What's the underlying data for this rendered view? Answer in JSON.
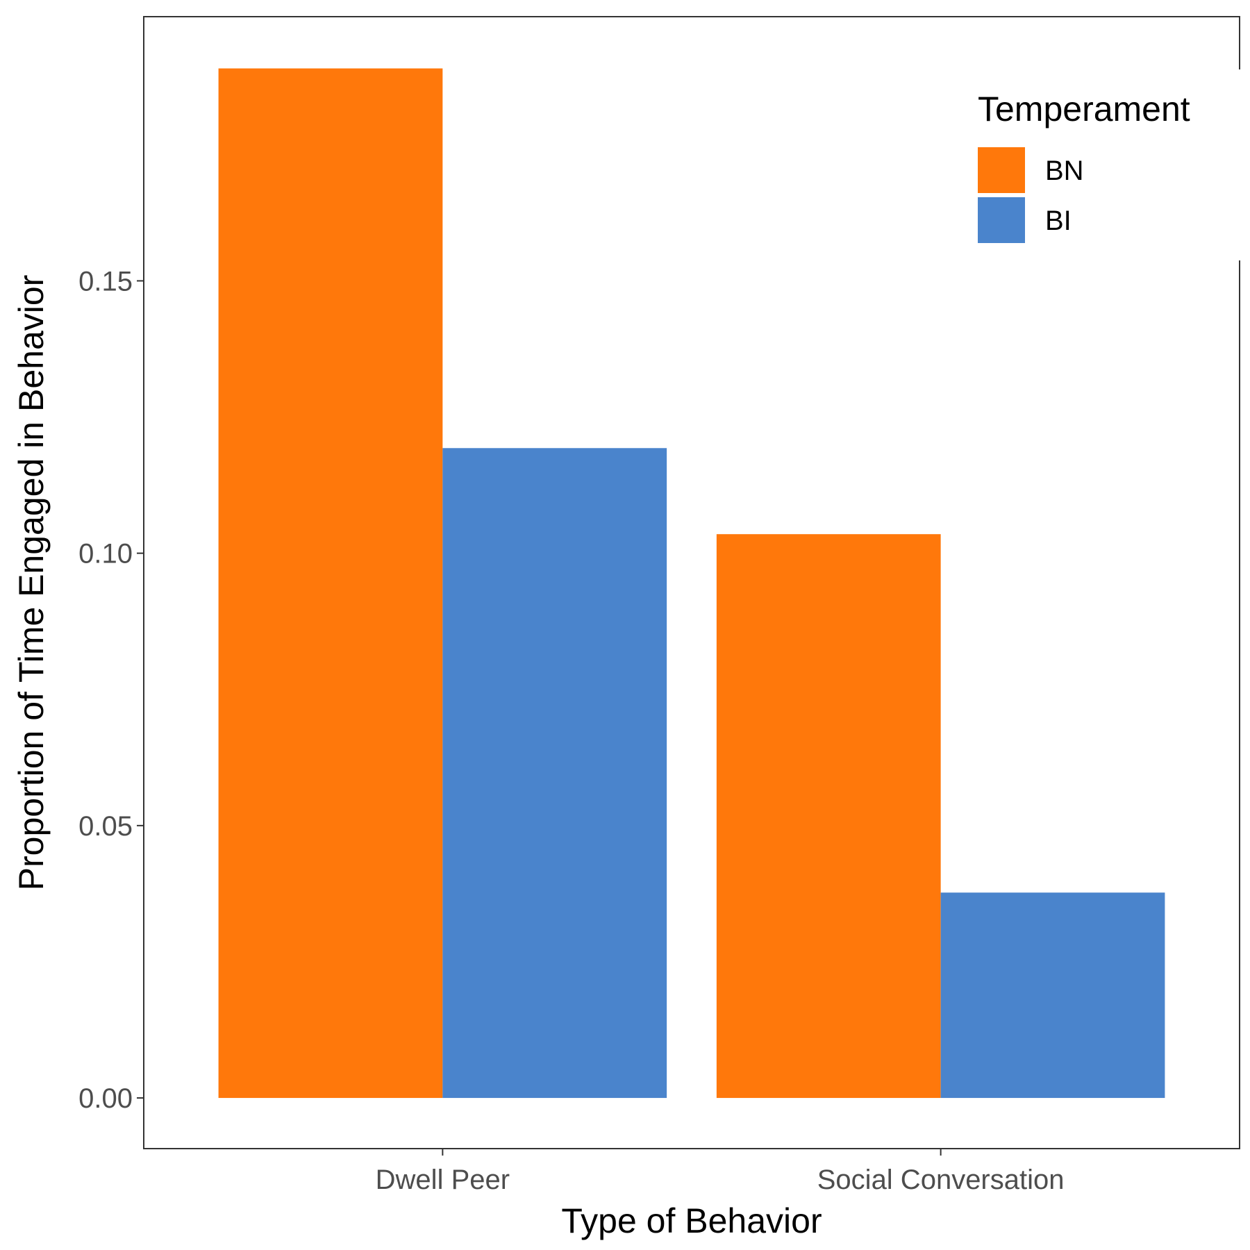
{
  "chart_data": {
    "type": "bar",
    "title": "",
    "xlabel": "Type of Behavior",
    "ylabel": "Proportion of Time Engaged in Behavior",
    "categories": [
      "Dwell Peer",
      "Social Conversation"
    ],
    "series": [
      {
        "name": "BN",
        "color": "#FF780B",
        "values": [
          0.189,
          0.1035
        ]
      },
      {
        "name": "BI",
        "color": "#4A84CC",
        "values": [
          0.1193,
          0.0377
        ]
      }
    ],
    "ylim": [
      -0.0093,
      0.1985
    ],
    "yticks": [
      0.0,
      0.05,
      0.1,
      0.15
    ],
    "ytick_labels": [
      "0.00",
      "0.05",
      "0.10",
      "0.15"
    ],
    "legend": {
      "title": "Temperament",
      "position": "top-right"
    },
    "grid": false
  }
}
